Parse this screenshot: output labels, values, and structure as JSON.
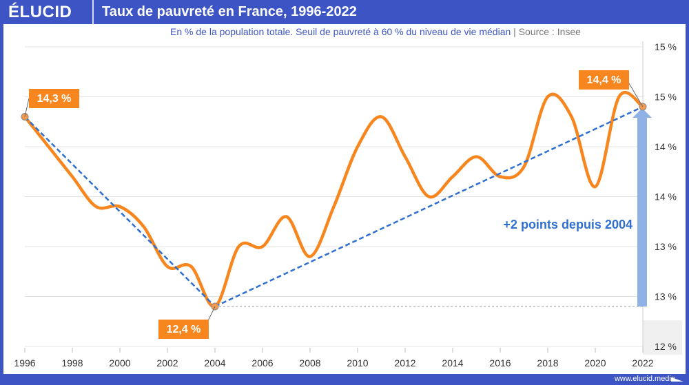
{
  "header": {
    "logo": "ÉLUCID",
    "title": "Taux de pauvreté en France, 1996-2022"
  },
  "subtitle": {
    "text": "En % de la population totale. Seuil de pauvreté à 60 % du niveau de vie médian",
    "separator": "|",
    "source": "Source : Insee"
  },
  "footer": {
    "url": "www.elucid.media"
  },
  "colors": {
    "brand": "#3d55c4",
    "line": "#f7861e",
    "trend": "#2f6fd1",
    "arrow": "#8fb2e6"
  },
  "chart_data": {
    "type": "line",
    "title": "Taux de pauvreté en France, 1996-2022",
    "x": [
      1996,
      1997,
      1998,
      1999,
      2000,
      2001,
      2002,
      2003,
      2004,
      2005,
      2006,
      2007,
      2008,
      2009,
      2010,
      2011,
      2012,
      2013,
      2014,
      2015,
      2016,
      2017,
      2018,
      2019,
      2020,
      2021,
      2022
    ],
    "series": [
      {
        "values": [
          14.3,
          14.0,
          13.7,
          13.4,
          13.4,
          13.2,
          12.8,
          12.8,
          12.4,
          13.0,
          13.0,
          13.3,
          12.9,
          13.4,
          14.0,
          14.3,
          13.9,
          13.5,
          13.7,
          13.9,
          13.7,
          13.8,
          14.5,
          14.3,
          13.6,
          14.5,
          14.4
        ]
      }
    ],
    "ylim": [
      12,
      15
    ],
    "yticks": [
      {
        "v": 15,
        "label": "15 %"
      },
      {
        "v": 14.5,
        "label": "15 %"
      },
      {
        "v": 14,
        "label": "14 %"
      },
      {
        "v": 13.5,
        "label": "14 %"
      },
      {
        "v": 13,
        "label": "13 %"
      },
      {
        "v": 12.5,
        "label": "13 %"
      },
      {
        "v": 12,
        "label": "12 %"
      }
    ],
    "xticks": [
      "1996",
      "1998",
      "2000",
      "2002",
      "2004",
      "2006",
      "2008",
      "2010",
      "2012",
      "2014",
      "2016",
      "2018",
      "2020",
      "2022"
    ],
    "grid": true,
    "annotations": {
      "start": "14,3 %",
      "low": "12,4 %",
      "end": "14,4 %",
      "trend_label": "+2 points depuis 2004"
    }
  }
}
